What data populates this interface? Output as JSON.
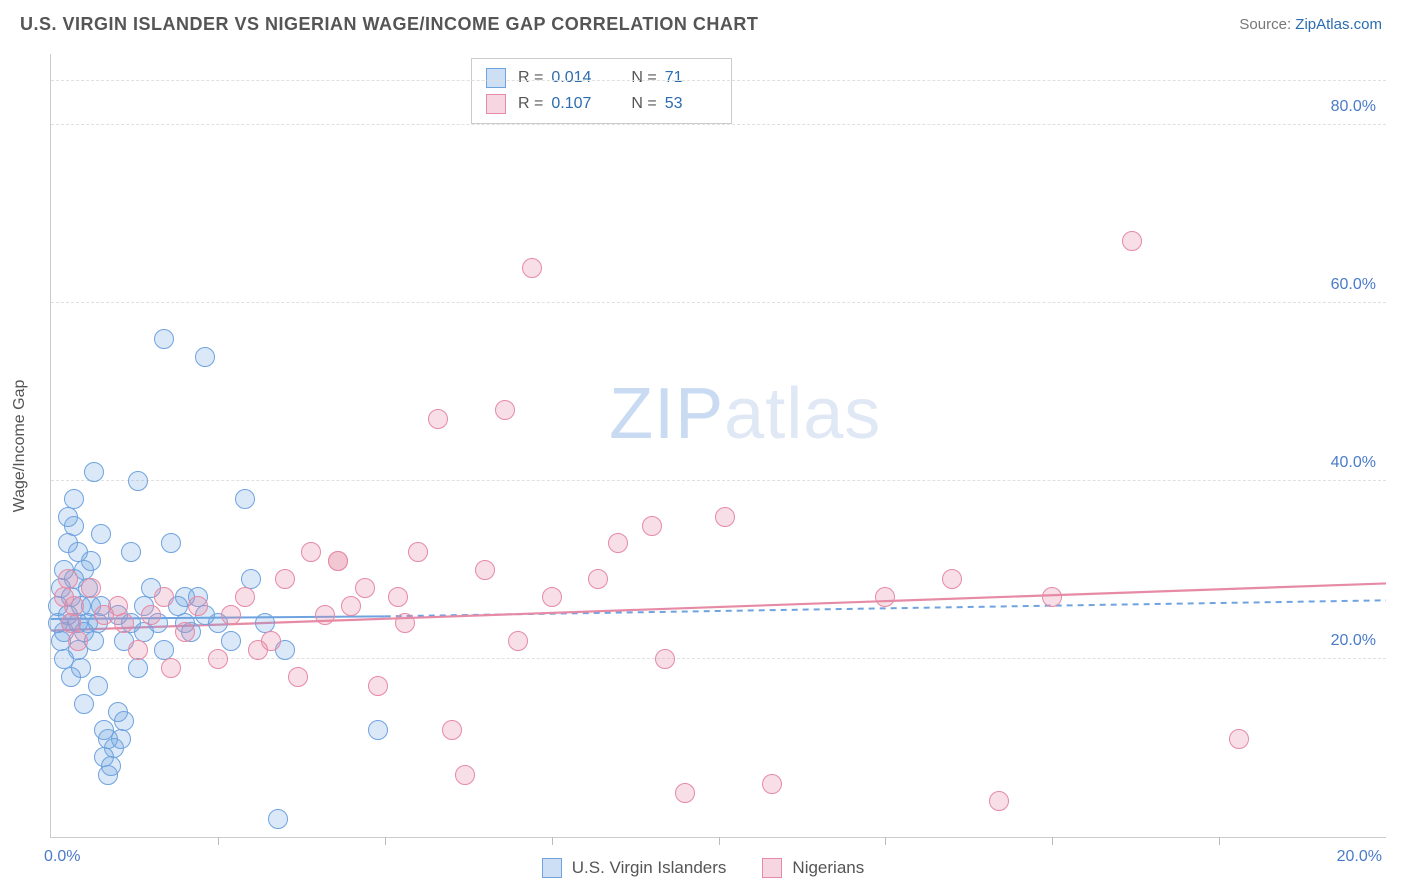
{
  "header": {
    "title": "U.S. VIRGIN ISLANDER VS NIGERIAN WAGE/INCOME GAP CORRELATION CHART",
    "source_prefix": "Source: ",
    "source_link": "ZipAtlas.com"
  },
  "watermark": {
    "part1": "ZIP",
    "part2": "atlas"
  },
  "chart": {
    "type": "scatter",
    "y_axis_title": "Wage/Income Gap",
    "xlim": [
      0,
      20
    ],
    "ylim": [
      0,
      88
    ],
    "x_tick_labels": {
      "start": "0.0%",
      "end": "20.0%"
    },
    "x_minor_ticks": [
      2.5,
      5,
      7.5,
      10,
      12.5,
      15,
      17.5
    ],
    "y_gridlines": [
      20,
      40,
      60,
      80,
      85
    ],
    "y_tick_labels": {
      "20": "20.0%",
      "40": "40.0%",
      "60": "60.0%",
      "80": "80.0%"
    },
    "background_color": "#ffffff",
    "grid_color": "#e0e0e0",
    "grid_dash": "4,4",
    "axis_color": "#cccccc",
    "tick_label_color": "#4a7bc8",
    "axis_title_color": "#555555",
    "point_radius": 10,
    "point_border_width": 1.5,
    "point_fill_opacity": 0.25,
    "series": [
      {
        "name": "U.S. Virgin Islanders",
        "color_border": "#6fa3e0",
        "color_fill": "rgba(111,163,224,0.25)",
        "R": "0.014",
        "N": "71",
        "trend": {
          "solid_from": [
            0,
            24.5
          ],
          "solid_to": [
            5,
            24.8
          ],
          "dashed_from": [
            5,
            24.8
          ],
          "dashed_to": [
            20,
            26.6
          ],
          "width": 2,
          "dash": "6,5"
        },
        "points": [
          [
            0.1,
            24
          ],
          [
            0.1,
            26
          ],
          [
            0.15,
            22
          ],
          [
            0.15,
            28
          ],
          [
            0.2,
            23
          ],
          [
            0.2,
            30
          ],
          [
            0.2,
            20
          ],
          [
            0.25,
            25
          ],
          [
            0.25,
            33
          ],
          [
            0.25,
            36
          ],
          [
            0.3,
            18
          ],
          [
            0.3,
            24
          ],
          [
            0.3,
            27
          ],
          [
            0.35,
            35
          ],
          [
            0.35,
            38
          ],
          [
            0.35,
            29
          ],
          [
            0.4,
            24
          ],
          [
            0.4,
            21
          ],
          [
            0.4,
            32
          ],
          [
            0.45,
            19
          ],
          [
            0.45,
            26
          ],
          [
            0.5,
            23
          ],
          [
            0.5,
            30
          ],
          [
            0.5,
            15
          ],
          [
            0.55,
            24
          ],
          [
            0.55,
            28
          ],
          [
            0.6,
            31
          ],
          [
            0.6,
            26
          ],
          [
            0.65,
            41
          ],
          [
            0.65,
            22
          ],
          [
            0.7,
            24
          ],
          [
            0.7,
            17
          ],
          [
            0.75,
            26
          ],
          [
            0.75,
            34
          ],
          [
            0.8,
            9
          ],
          [
            0.8,
            12
          ],
          [
            0.85,
            7
          ],
          [
            0.85,
            11
          ],
          [
            0.9,
            8
          ],
          [
            0.95,
            10
          ],
          [
            1.0,
            14
          ],
          [
            1.0,
            25
          ],
          [
            1.1,
            13
          ],
          [
            1.1,
            22
          ],
          [
            1.2,
            32
          ],
          [
            1.2,
            24
          ],
          [
            1.3,
            19
          ],
          [
            1.3,
            40
          ],
          [
            1.4,
            26
          ],
          [
            1.4,
            23
          ],
          [
            1.5,
            28
          ],
          [
            1.6,
            24
          ],
          [
            1.7,
            21
          ],
          [
            1.8,
            33
          ],
          [
            1.9,
            26
          ],
          [
            2.0,
            24
          ],
          [
            2.1,
            23
          ],
          [
            2.2,
            27
          ],
          [
            2.3,
            25
          ],
          [
            2.5,
            24
          ],
          [
            2.7,
            22
          ],
          [
            2.9,
            38
          ],
          [
            3.0,
            29
          ],
          [
            3.2,
            24
          ],
          [
            3.4,
            2
          ],
          [
            3.5,
            21
          ],
          [
            1.7,
            56
          ],
          [
            2.3,
            54
          ],
          [
            4.9,
            12
          ],
          [
            2.0,
            27
          ],
          [
            1.05,
            11
          ]
        ]
      },
      {
        "name": "Nigerians",
        "color_border": "#e68aa6",
        "color_fill": "rgba(230,138,166,0.28)",
        "R": "0.107",
        "N": "53",
        "trend": {
          "solid_from": [
            0,
            23.2
          ],
          "solid_to": [
            20,
            28.5
          ],
          "width": 2.2
        },
        "points": [
          [
            0.2,
            27
          ],
          [
            0.25,
            29
          ],
          [
            0.3,
            24
          ],
          [
            0.35,
            26
          ],
          [
            0.4,
            22
          ],
          [
            0.6,
            28
          ],
          [
            0.8,
            25
          ],
          [
            1.0,
            26
          ],
          [
            1.1,
            24
          ],
          [
            1.3,
            21
          ],
          [
            1.5,
            25
          ],
          [
            1.7,
            27
          ],
          [
            1.8,
            19
          ],
          [
            2.0,
            23
          ],
          [
            2.2,
            26
          ],
          [
            2.5,
            20
          ],
          [
            2.7,
            25
          ],
          [
            2.9,
            27
          ],
          [
            3.1,
            21
          ],
          [
            3.3,
            22
          ],
          [
            3.5,
            29
          ],
          [
            3.7,
            18
          ],
          [
            3.9,
            32
          ],
          [
            4.1,
            25
          ],
          [
            4.3,
            31
          ],
          [
            4.5,
            26
          ],
          [
            4.7,
            28
          ],
          [
            4.9,
            17
          ],
          [
            5.2,
            27
          ],
          [
            5.5,
            32
          ],
          [
            5.8,
            47
          ],
          [
            6.0,
            12
          ],
          [
            6.2,
            7
          ],
          [
            6.5,
            30
          ],
          [
            6.8,
            48
          ],
          [
            7.0,
            22
          ],
          [
            7.5,
            27
          ],
          [
            8.2,
            29
          ],
          [
            8.5,
            33
          ],
          [
            9.0,
            35
          ],
          [
            9.2,
            20
          ],
          [
            9.5,
            5
          ],
          [
            10.1,
            36
          ],
          [
            10.8,
            6
          ],
          [
            12.5,
            27
          ],
          [
            13.5,
            29
          ],
          [
            14.2,
            4
          ],
          [
            15.0,
            27
          ],
          [
            16.2,
            67
          ],
          [
            17.8,
            11
          ],
          [
            7.2,
            64
          ],
          [
            4.3,
            31
          ],
          [
            5.3,
            24
          ]
        ]
      }
    ]
  },
  "stats_box": {
    "r_label": "R =",
    "n_label": "N ="
  },
  "legend": {
    "items": [
      {
        "label": "U.S. Virgin Islanders",
        "border": "#6fa3e0",
        "fill": "rgba(111,163,224,0.35)"
      },
      {
        "label": "Nigerians",
        "border": "#e68aa6",
        "fill": "rgba(230,138,166,0.35)"
      }
    ]
  }
}
